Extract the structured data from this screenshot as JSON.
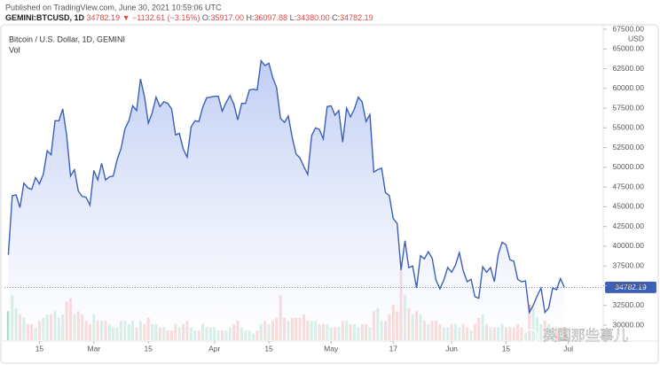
{
  "chart_data": {
    "type": "area",
    "published": "Published on TradingView.com, June 30, 2021 10:59:06 UTC",
    "symbol": "GEMINI:BTCUSD, 1D",
    "change": "▼ −1132.61 (−3.15%)",
    "ohlc": [
      {
        "label": "O:",
        "value": "35917.00"
      },
      {
        "label": "H:",
        "value": "36097.88"
      },
      {
        "label": "L:",
        "value": "34380.00"
      },
      {
        "label": "C:",
        "value": "34782.19"
      }
    ],
    "title": "Bitcoin / U.S. Dollar, 1D, GEMINI",
    "volume_label": "Vol",
    "y_unit": "USD",
    "watermark": "英国那些事儿",
    "x": [
      38,
      39,
      40,
      41,
      42,
      43,
      44,
      45,
      46,
      47,
      48,
      49,
      50,
      51,
      52,
      53,
      54,
      55,
      56,
      57,
      58,
      59,
      60,
      61,
      62,
      63,
      64,
      65,
      66,
      67,
      68,
      69,
      70,
      71,
      72,
      73,
      74,
      75,
      76,
      77,
      78,
      79,
      80,
      81,
      82,
      83,
      84,
      85,
      86,
      87,
      88,
      89,
      90,
      91,
      92,
      93,
      94,
      95,
      96,
      97,
      98,
      99,
      100,
      101,
      102,
      103,
      104,
      105,
      106,
      107,
      108,
      109,
      110,
      111,
      112,
      113,
      114,
      115,
      116,
      117,
      118,
      119,
      120,
      121,
      122,
      123,
      124,
      125,
      126,
      127,
      128,
      129,
      130,
      131,
      132,
      133,
      134,
      135,
      136,
      137,
      138,
      139,
      140,
      141,
      142,
      143,
      144,
      145,
      146,
      147,
      148,
      149,
      150,
      151,
      152,
      153,
      154,
      155,
      156,
      157,
      158,
      159,
      160,
      161,
      162,
      163,
      164,
      165,
      166,
      167,
      168,
      169,
      170,
      171,
      172,
      173,
      174,
      175,
      176,
      177,
      178,
      179,
      180,
      181
    ],
    "xlim": [
      37,
      191
    ],
    "xticks": [
      {
        "value": 46,
        "label": "15"
      },
      {
        "value": 60,
        "label": "Mar"
      },
      {
        "value": 74,
        "label": "15"
      },
      {
        "value": 91,
        "label": "Apr"
      },
      {
        "value": 105,
        "label": "15"
      },
      {
        "value": 121,
        "label": "May"
      },
      {
        "value": 137,
        "label": "17"
      },
      {
        "value": 152,
        "label": "Jun"
      },
      {
        "value": 166,
        "label": "15"
      },
      {
        "value": 182,
        "label": "Jul"
      }
    ],
    "ylim": [
      30000,
      67500
    ],
    "yticks": [
      {
        "value": 30000,
        "label": "30000.00"
      },
      {
        "value": 32500,
        "label": "32500.00"
      },
      {
        "value": 35000,
        "label": "35000.00"
      },
      {
        "value": 37500,
        "label": "37500.00"
      },
      {
        "value": 40000,
        "label": "40000.00"
      },
      {
        "value": 42500,
        "label": "42500.00"
      },
      {
        "value": 45000,
        "label": "45000.00"
      },
      {
        "value": 47500,
        "label": "47500.00"
      },
      {
        "value": 50000,
        "label": "50000.00"
      },
      {
        "value": 52500,
        "label": "52500.00"
      },
      {
        "value": 55000,
        "label": "55000.00"
      },
      {
        "value": 57500,
        "label": "57500.00"
      },
      {
        "value": 60000,
        "label": "60000.00"
      },
      {
        "value": 62500,
        "label": "62500.00"
      },
      {
        "value": 65000,
        "label": "65000.00"
      },
      {
        "value": 67500,
        "label": "67500.00"
      }
    ],
    "series": [
      {
        "color": "#3d5fb8",
        "values": [
          38900,
          46400,
          46500,
          44900,
          48000,
          47400,
          47200,
          48700,
          47900,
          49100,
          52100,
          51600,
          55900,
          55900,
          57400,
          54100,
          48900,
          49700,
          47000,
          46300,
          46200,
          45200,
          49600,
          48400,
          50500,
          48400,
          48800,
          48900,
          51000,
          52400,
          54900,
          55900,
          57800,
          57200,
          61200,
          59000,
          55600,
          56900,
          58900,
          57700,
          58300,
          58100,
          57400,
          54100,
          54300,
          52300,
          51300,
          55100,
          55900,
          55800,
          57600,
          58800,
          58900,
          59000,
          59000,
          57100,
          58200,
          59100,
          58000,
          56000,
          58100,
          58100,
          59800,
          59900,
          59800,
          63500,
          62900,
          63200,
          61400,
          60100,
          56200,
          55700,
          56500,
          53800,
          51700,
          51200,
          50100,
          49100,
          54000,
          55000,
          54800,
          53600,
          57700,
          57800,
          56600,
          57200,
          53200,
          57500,
          56400,
          57400,
          58900,
          58300,
          55800,
          56700,
          49400,
          49700,
          49900,
          46800,
          46400,
          43500,
          42900,
          37000,
          40700,
          37300,
          37500,
          34700,
          38800,
          38400,
          39300,
          38500,
          35700,
          34600,
          35700,
          37300,
          36700,
          37600,
          39200,
          36900,
          35500,
          35800,
          33600,
          33400,
          37400,
          36700,
          37300,
          35500,
          39000,
          40500,
          40200,
          38300,
          38100,
          35800,
          35500,
          35600,
          31600,
          32500,
          33700,
          34700,
          31600,
          32200,
          34700,
          34500,
          35900,
          34782.19
        ]
      }
    ],
    "volume": {
      "up_color": "#9fd6c6",
      "down_color": "#f2a5a5",
      "values": [
        9,
        14,
        10,
        8,
        7,
        5,
        5,
        4,
        6,
        7,
        8,
        8,
        9,
        7,
        8,
        12,
        13,
        8,
        9,
        8,
        6,
        5,
        8,
        6,
        6,
        6,
        5,
        4,
        4,
        6,
        6,
        5,
        6,
        4,
        6,
        5,
        7,
        5,
        5,
        4,
        4,
        3,
        3,
        5,
        4,
        5,
        6,
        4,
        3,
        3,
        5,
        4,
        4,
        4,
        3,
        3,
        3,
        4,
        5,
        6,
        4,
        3,
        3,
        2,
        3,
        5,
        6,
        5,
        6,
        7,
        14,
        7,
        6,
        7,
        7,
        7,
        8,
        6,
        6,
        6,
        5,
        5,
        5,
        4,
        4,
        4,
        6,
        6,
        5,
        5,
        4,
        5,
        5,
        4,
        9,
        10,
        6,
        6,
        8,
        11,
        9,
        22,
        14,
        10,
        8,
        9,
        8,
        6,
        5,
        6,
        6,
        5,
        4,
        4,
        5,
        5,
        4,
        5,
        4,
        3,
        5,
        7,
        8,
        5,
        4,
        4,
        4,
        5,
        4,
        4,
        4,
        5,
        4,
        3,
        11,
        10,
        7,
        5,
        6,
        5,
        4,
        4,
        4,
        4
      ]
    }
  }
}
